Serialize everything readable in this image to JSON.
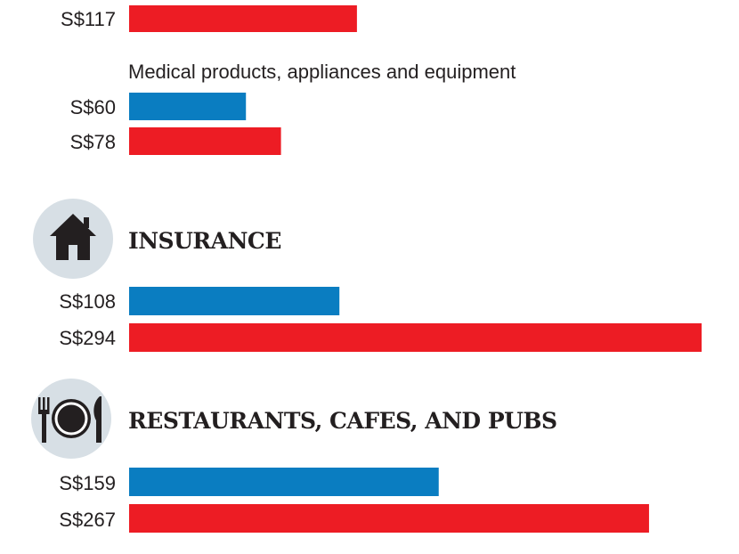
{
  "colors": {
    "blue": "#0a7dc1",
    "red": "#ed1c24",
    "icon_circle": "#d7dfe5",
    "icon_fill": "#231f20"
  },
  "chart_data": [
    {
      "type": "bar",
      "orientation": "horizontal",
      "title": "",
      "subtitle": "",
      "series": [
        {
          "color": "blue",
          "values": []
        },
        {
          "color": "red",
          "values": [
            117
          ]
        }
      ],
      "value_labels": [
        "S$117"
      ],
      "note": ""
    },
    {
      "type": "bar",
      "orientation": "horizontal",
      "title": "",
      "subtitle": "Medical products, appliances and equipment",
      "series": [
        {
          "color": "blue",
          "values": [
            60
          ]
        },
        {
          "color": "red",
          "values": [
            78
          ]
        }
      ],
      "value_labels": [
        "S$60",
        "S$78"
      ]
    },
    {
      "type": "bar",
      "orientation": "horizontal",
      "title": "INSURANCE",
      "icon": "house-icon",
      "series": [
        {
          "color": "blue",
          "values": [
            108
          ]
        },
        {
          "color": "red",
          "values": [
            294
          ]
        }
      ],
      "value_labels": [
        "S$108",
        "S$294"
      ]
    },
    {
      "type": "bar",
      "orientation": "horizontal",
      "title": "RESTAURANTS, CAFES, AND PUBS",
      "icon": "plate-cutlery-icon",
      "series": [
        {
          "color": "blue",
          "values": [
            159
          ]
        },
        {
          "color": "red",
          "values": [
            267
          ]
        }
      ],
      "value_labels": [
        "S$159",
        "S$267"
      ]
    }
  ],
  "scale": {
    "max_value": 294
  }
}
